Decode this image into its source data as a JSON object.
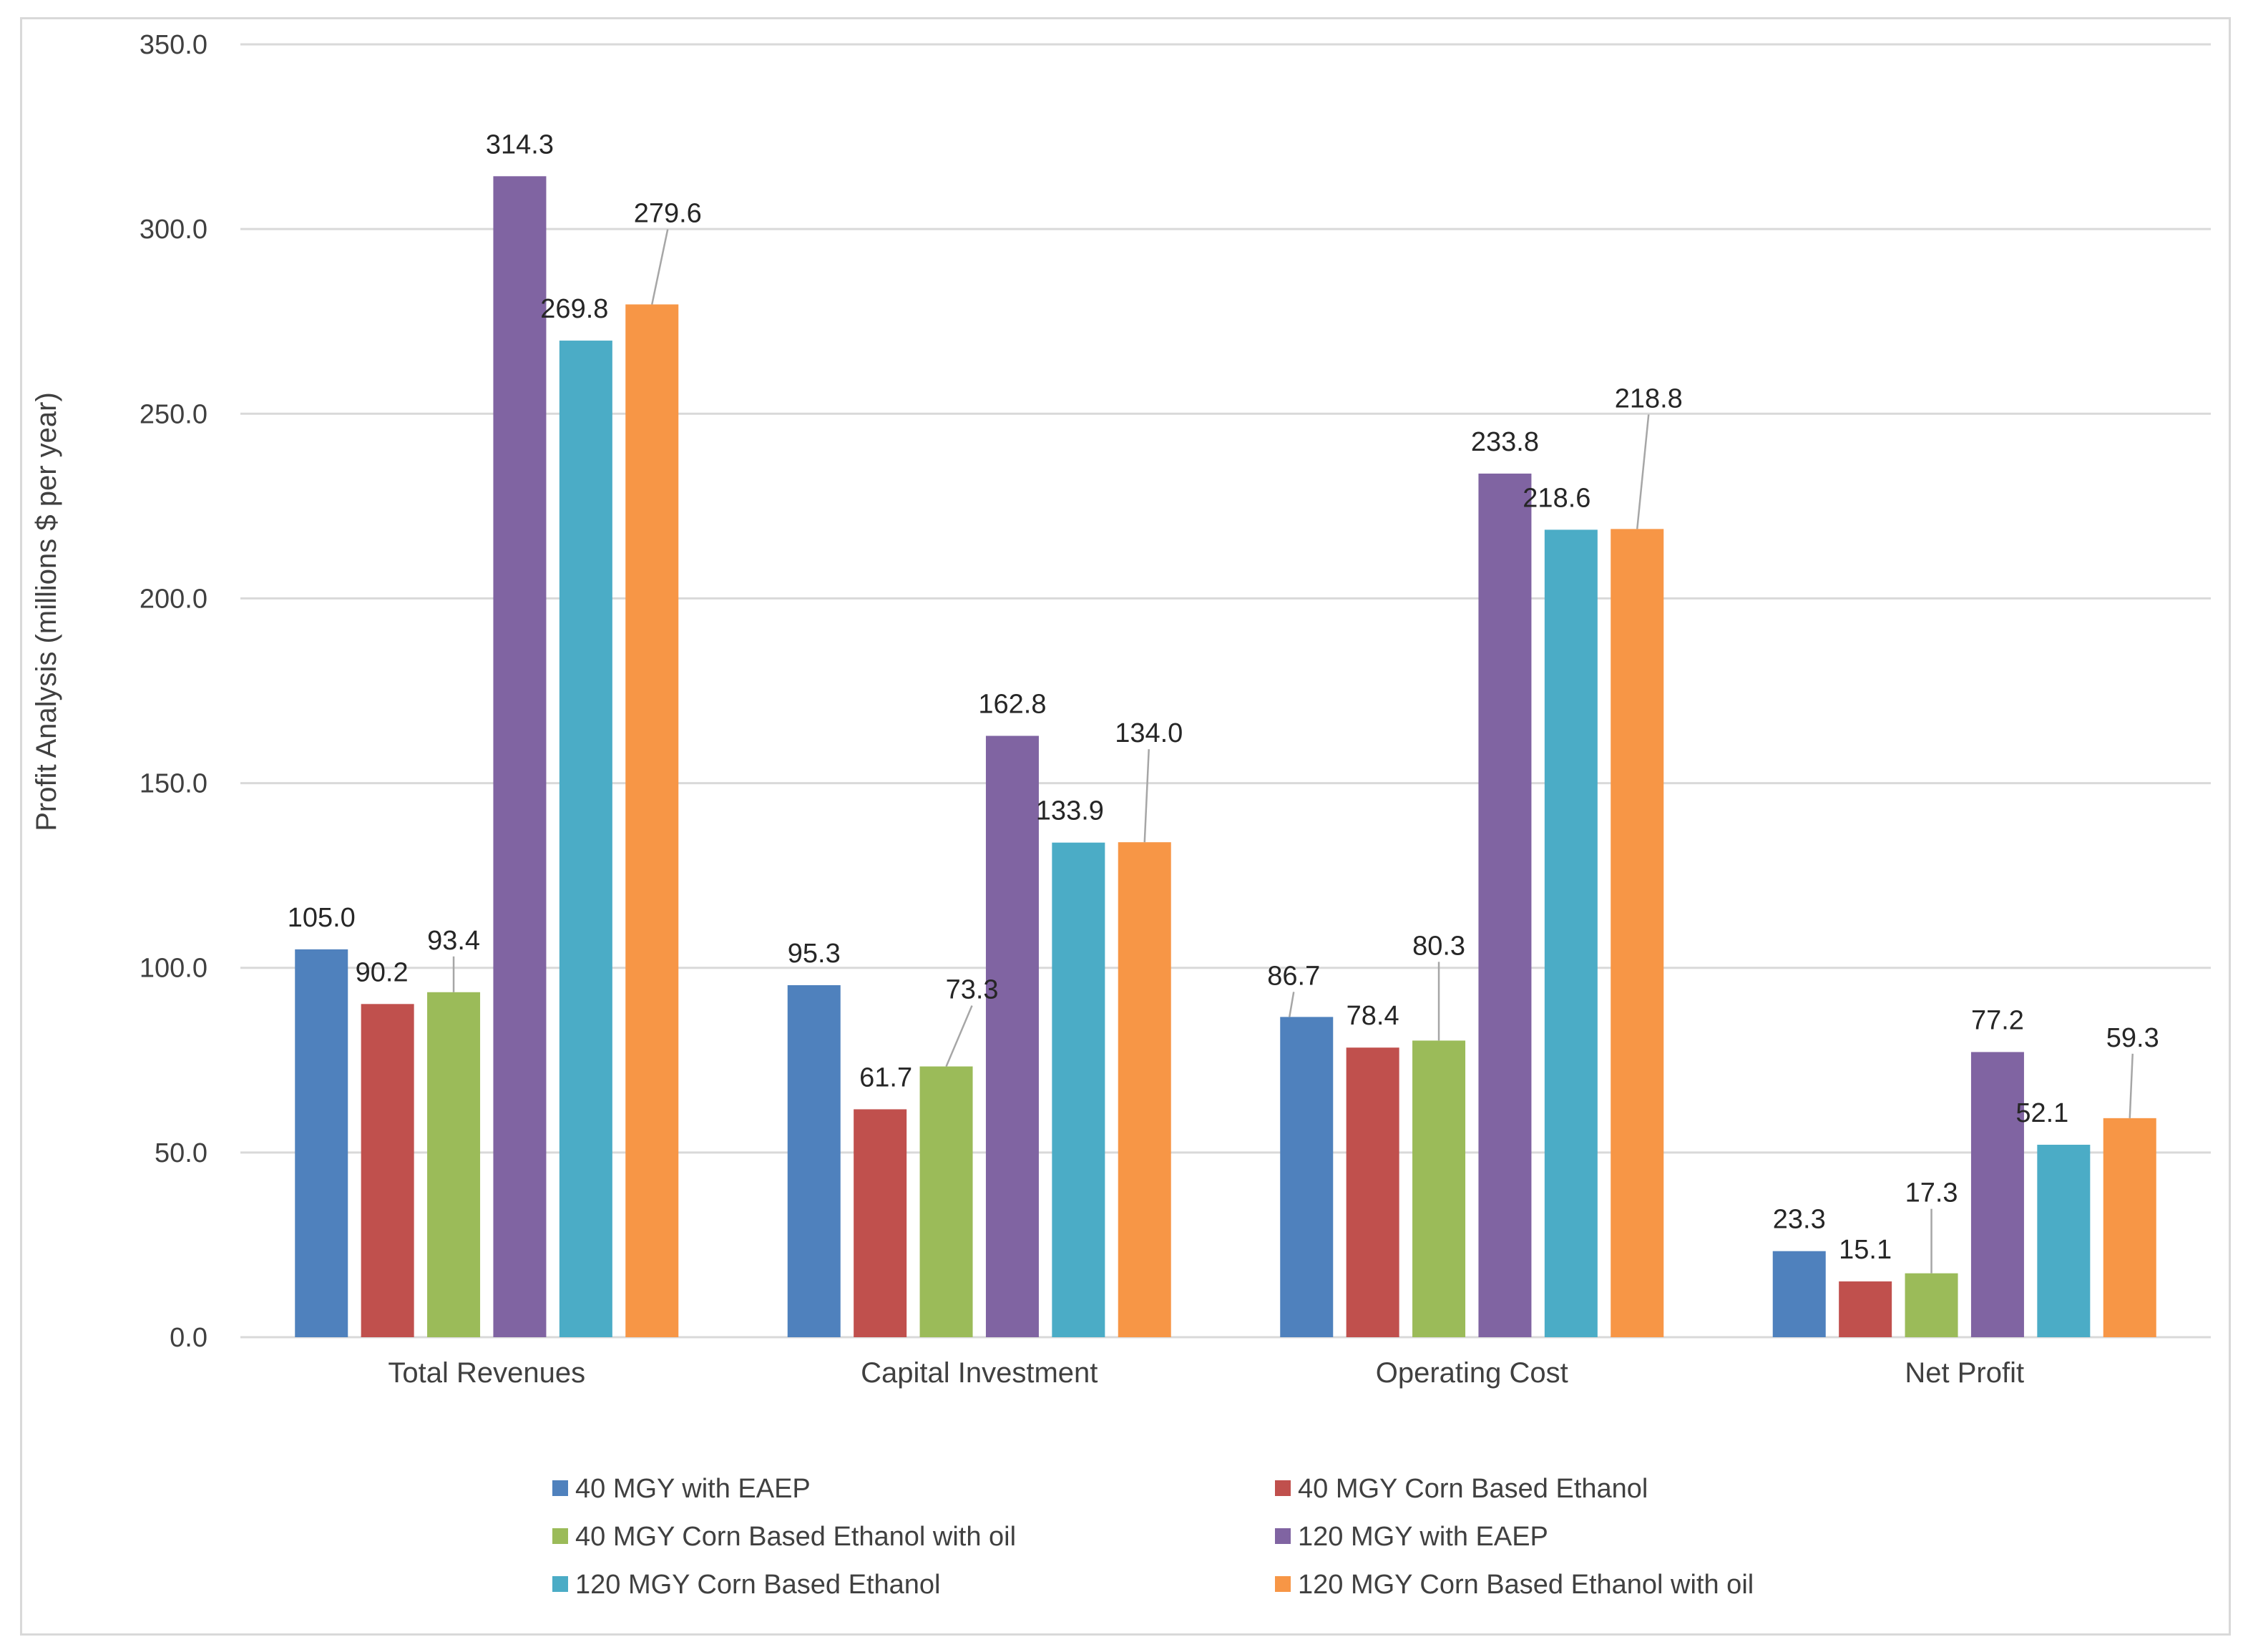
{
  "chart_data": {
    "type": "bar",
    "title": "",
    "xlabel": "",
    "ylabel": "Profit Analysis (millions $ per year)",
    "ylim": [
      0,
      350
    ],
    "yticks": [
      0,
      50,
      100,
      150,
      200,
      250,
      300,
      350
    ],
    "ytick_labels": [
      "0.0",
      "50.0",
      "100.0",
      "150.0",
      "200.0",
      "250.0",
      "300.0",
      "350.0"
    ],
    "grid": true,
    "legend_position": "bottom",
    "categories": [
      "Total Revenues",
      "Capital Investment",
      "Operating Cost",
      "Net Profit"
    ],
    "series": [
      {
        "name": "40 MGY with EAEP",
        "color": "#4f81bd",
        "values": [
          105.0,
          95.3,
          86.7,
          23.3
        ],
        "labels": [
          "105.0",
          "95.3",
          "86.7",
          "23.3"
        ]
      },
      {
        "name": "40 MGY Corn Based Ethanol",
        "color": "#c0504d",
        "values": [
          90.2,
          61.7,
          78.4,
          15.1
        ],
        "labels": [
          "90.2",
          "61.7",
          "78.4",
          "15.1"
        ]
      },
      {
        "name": "40 MGY Corn Based Ethanol with oil",
        "color": "#9bbb59",
        "values": [
          93.4,
          73.3,
          80.3,
          17.3
        ],
        "labels": [
          "93.4",
          "73.3",
          "80.3",
          "17.3"
        ]
      },
      {
        "name": "120 MGY with EAEP",
        "color": "#8064a2",
        "values": [
          314.3,
          162.8,
          233.8,
          77.2
        ],
        "labels": [
          "314.3",
          "162.8",
          "233.8",
          "77.2"
        ]
      },
      {
        "name": "120 MGY Corn Based Ethanol",
        "color": "#4bacc6",
        "values": [
          269.8,
          133.9,
          218.6,
          52.1
        ],
        "labels": [
          "269.8",
          "133.9",
          "218.6",
          "52.1"
        ]
      },
      {
        "name": "120 MGY Corn Based Ethanol with oil",
        "color": "#f79646",
        "values": [
          279.6,
          134.0,
          218.8,
          59.3
        ],
        "labels": [
          "279.6",
          "134.0",
          "218.8",
          "59.3"
        ]
      }
    ]
  },
  "colors": {
    "gridline": "#d9d9d9",
    "frame": "#d9d9d9",
    "leader_line": "#a6a6a6",
    "axis_text": "#404040",
    "label_text": "#262626"
  }
}
